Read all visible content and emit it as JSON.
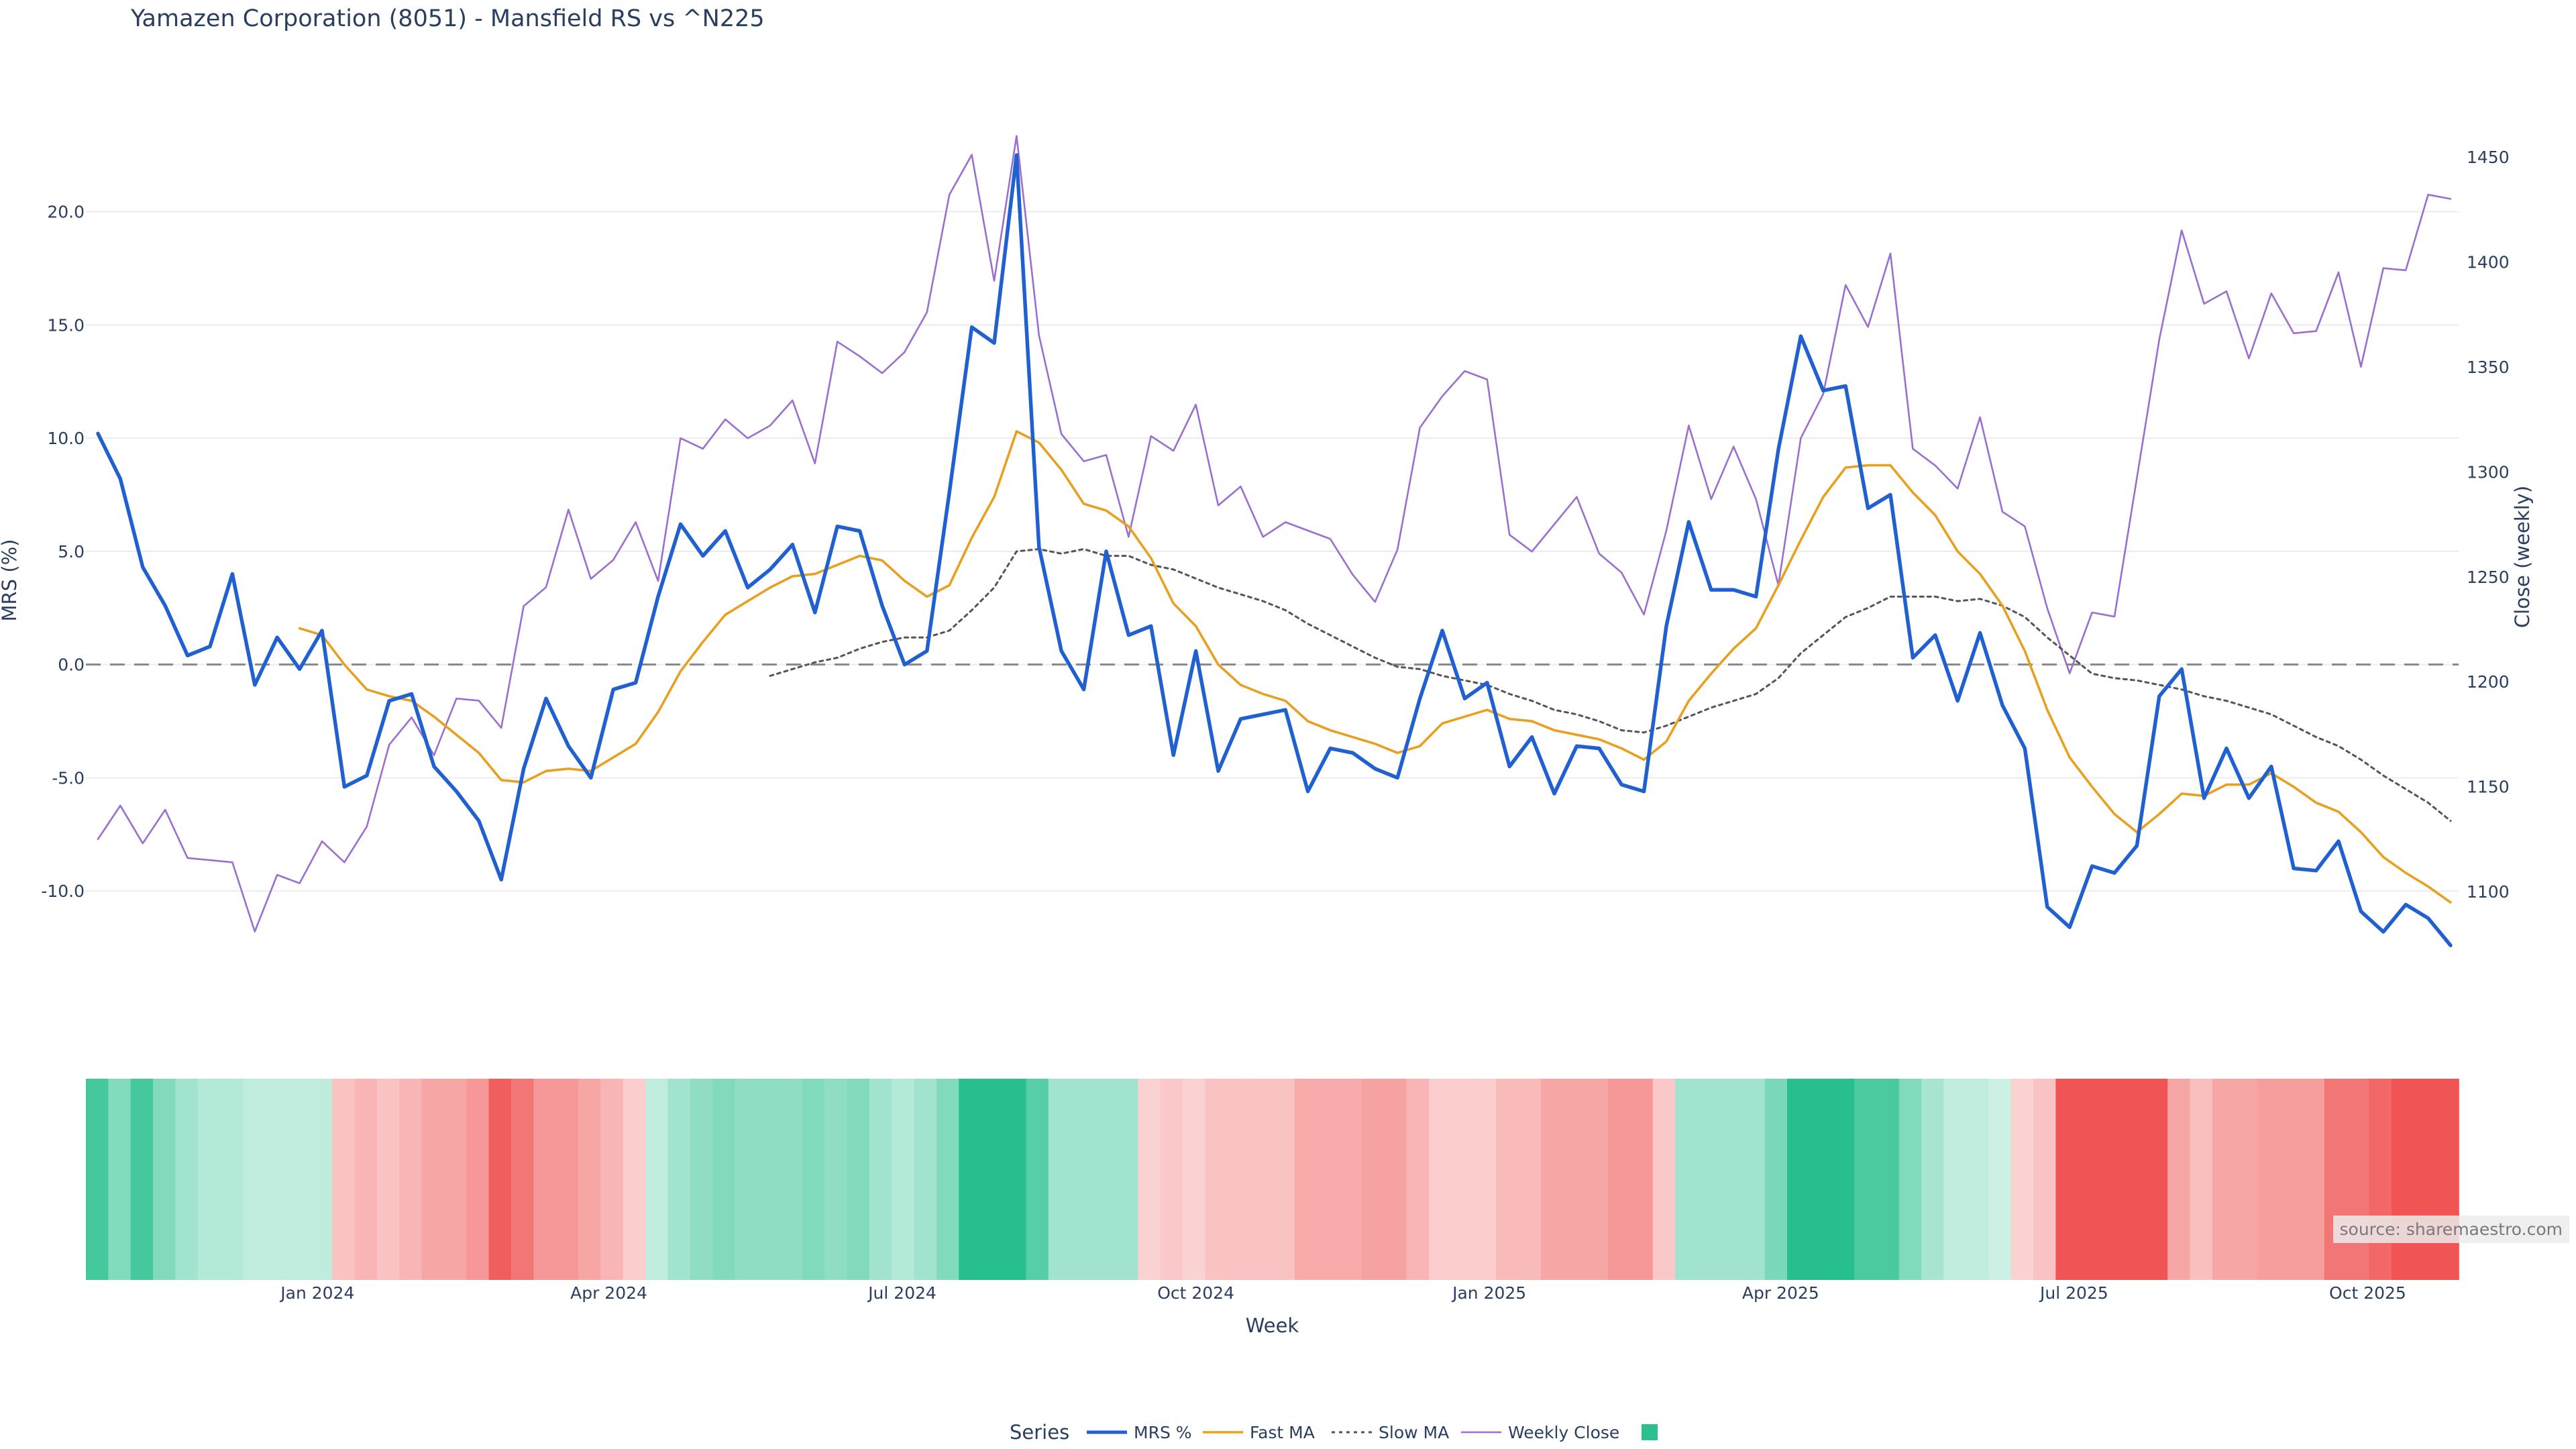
{
  "title": "Yamazen Corporation (8051) - Mansfield RS vs ^N225",
  "source": "source: sharemaestro.com",
  "colors": {
    "mrs": "#2060d0",
    "fast": "#e8a020",
    "slow": "#555555",
    "close": "#9b6fd0",
    "zero": "#888888",
    "grid": "#ececec",
    "legend_square": "#2dbf8f"
  },
  "chart_data": {
    "type": "line",
    "xlabel": "Week",
    "ylabel_left": "MRS (%)",
    "ylabel_right": "Close (weekly)",
    "ylim_left": [
      -14.2,
      25.2
    ],
    "ylim_right": [
      1055,
      1480
    ],
    "left_ticks": [
      "20.0",
      "15.0",
      "10.0",
      "5.0",
      "0.0",
      "-5.0",
      "-10.0"
    ],
    "left_tick_values": [
      20,
      15,
      10,
      5,
      0,
      -5,
      -10
    ],
    "right_ticks": [
      "1450",
      "1400",
      "1350",
      "1300",
      "1250",
      "1200",
      "1150",
      "1100"
    ],
    "right_tick_values": [
      1450,
      1400,
      1350,
      1300,
      1250,
      1200,
      1150,
      1100
    ],
    "x_ticks": [
      "Jan 2024",
      "Apr 2024",
      "Jul 2024",
      "Oct 2024",
      "Jan 2025",
      "Apr 2025",
      "Jul 2025",
      "Oct 2025"
    ],
    "x_tick_index": [
      9.8,
      22.8,
      35.9,
      49.0,
      62.1,
      75.1,
      88.2,
      101.3
    ],
    "zero_line": 0,
    "legend": {
      "title": "Series",
      "items": [
        "MRS %",
        "Fast MA",
        "Slow MA",
        "Weekly Close",
        ""
      ],
      "placement": "bottom-center"
    },
    "series": [
      {
        "name": "MRS %",
        "style": "solid",
        "values": [
          10.2,
          8.2,
          4.3,
          2.6,
          0.4,
          0.8,
          4.0,
          -0.9,
          1.2,
          -0.2,
          1.5,
          -5.4,
          -4.9,
          -1.6,
          -1.3,
          -4.5,
          -5.6,
          -6.9,
          -9.5,
          -4.6,
          -1.5,
          -3.6,
          -5.0,
          -1.1,
          -0.8,
          3.0,
          6.2,
          4.8,
          5.9,
          3.4,
          4.2,
          5.3,
          2.3,
          6.1,
          5.9,
          2.6,
          0.0,
          0.6,
          7.6,
          14.9,
          14.2,
          22.5,
          5.2,
          0.6,
          -1.1,
          5.0,
          1.3,
          1.7,
          -4.0,
          0.6,
          -4.7,
          -2.4,
          -2.2,
          -2.0,
          -5.6,
          -3.7,
          -3.9,
          -4.6,
          -5.0,
          -1.5,
          1.5,
          -1.5,
          -0.8,
          -4.5,
          -3.2,
          -5.7,
          -3.6,
          -3.7,
          -5.3,
          -5.6,
          1.7,
          6.3,
          3.3,
          3.3,
          3.0,
          9.5,
          14.5,
          12.1,
          12.3,
          6.9,
          7.5,
          0.3,
          1.3,
          -1.6,
          1.4,
          -1.8,
          -3.7,
          -10.7,
          -11.6,
          -8.9,
          -9.2,
          -8.0,
          -1.4,
          -0.2,
          -5.9,
          -3.7,
          -5.9,
          -4.5,
          -9.0,
          -9.1,
          -7.8,
          -10.9,
          -11.8,
          -10.6,
          -11.2,
          -12.4
        ]
      },
      {
        "name": "Fast MA",
        "style": "solid",
        "values": [
          null,
          null,
          null,
          null,
          null,
          null,
          null,
          null,
          null,
          1.6,
          1.3,
          0.0,
          -1.1,
          -1.4,
          -1.6,
          -2.3,
          -3.1,
          -3.9,
          -5.1,
          -5.2,
          -4.7,
          -4.6,
          -4.7,
          -4.1,
          -3.5,
          -2.1,
          -0.3,
          1.0,
          2.2,
          2.8,
          3.4,
          3.9,
          4.0,
          4.4,
          4.8,
          4.6,
          3.7,
          3.0,
          3.5,
          5.6,
          7.4,
          10.3,
          9.8,
          8.6,
          7.1,
          6.8,
          6.1,
          4.7,
          2.7,
          1.7,
          0.0,
          -0.9,
          -1.3,
          -1.6,
          -2.5,
          -2.9,
          -3.2,
          -3.5,
          -3.9,
          -3.6,
          -2.6,
          -2.3,
          -2.0,
          -2.4,
          -2.5,
          -2.9,
          -3.1,
          -3.3,
          -3.7,
          -4.2,
          -3.4,
          -1.6,
          -0.4,
          0.7,
          1.6,
          3.5,
          5.5,
          7.4,
          8.7,
          8.8,
          8.8,
          7.6,
          6.6,
          5.0,
          4.0,
          2.6,
          0.6,
          -2.0,
          -4.1,
          -5.4,
          -6.6,
          -7.4,
          -6.6,
          -5.7,
          -5.8,
          -5.3,
          -5.3,
          -4.8,
          -5.4,
          -6.1,
          -6.5,
          -7.4,
          -8.5,
          -9.2,
          -9.8,
          -10.5
        ]
      },
      {
        "name": "Slow MA",
        "style": "dotted",
        "values": [
          null,
          null,
          null,
          null,
          null,
          null,
          null,
          null,
          null,
          null,
          null,
          null,
          null,
          null,
          null,
          null,
          null,
          null,
          null,
          null,
          null,
          null,
          null,
          null,
          null,
          null,
          null,
          null,
          null,
          null,
          -0.5,
          -0.2,
          0.1,
          0.3,
          0.7,
          1.0,
          1.2,
          1.2,
          1.5,
          2.4,
          3.4,
          5.0,
          5.1,
          4.9,
          5.1,
          4.8,
          4.8,
          4.4,
          4.2,
          3.8,
          3.4,
          3.1,
          2.8,
          2.4,
          1.8,
          1.3,
          0.8,
          0.3,
          -0.1,
          -0.2,
          -0.5,
          -0.7,
          -0.9,
          -1.3,
          -1.6,
          -2.0,
          -2.2,
          -2.5,
          -2.9,
          -3.0,
          -2.7,
          -2.3,
          -1.9,
          -1.6,
          -1.3,
          -0.6,
          0.5,
          1.3,
          2.1,
          2.5,
          3.0,
          3.0,
          3.0,
          2.8,
          2.9,
          2.6,
          2.1,
          1.2,
          0.4,
          -0.4,
          -0.6,
          -0.7,
          -0.9,
          -1.1,
          -1.4,
          -1.6,
          -1.9,
          -2.2,
          -2.7,
          -3.2,
          -3.6,
          -4.2,
          -4.9,
          -5.5,
          -6.1,
          -6.9
        ]
      },
      {
        "name": "Weekly Close",
        "axis": "right",
        "style": "solid",
        "values": [
          1125,
          1141,
          1123,
          1139,
          1116,
          1115,
          1114,
          1081,
          1108,
          1104,
          1124,
          1114,
          1131,
          1170,
          1183,
          1165,
          1192,
          1191,
          1178,
          1236,
          1245,
          1282,
          1249,
          1258,
          1276,
          1248,
          1316,
          1311,
          1325,
          1316,
          1322,
          1334,
          1304,
          1362,
          1355,
          1347,
          1357,
          1376,
          1432,
          1451,
          1391,
          1460,
          1365,
          1318,
          1305,
          1308,
          1269,
          1317,
          1310,
          1332,
          1284,
          1293,
          1269,
          1276,
          1272,
          1268,
          1251,
          1238,
          1263,
          1321,
          1336,
          1348,
          1344,
          1270,
          1262,
          1275,
          1288,
          1261,
          1252,
          1232,
          1272,
          1322,
          1287,
          1312,
          1287,
          1246,
          1316,
          1337,
          1389,
          1369,
          1404,
          1311,
          1303,
          1292,
          1326,
          1281,
          1274,
          1235,
          1204,
          1233,
          1231,
          1297,
          1363,
          1415,
          1380,
          1386,
          1354,
          1385,
          1366,
          1367,
          1395,
          1350,
          1397,
          1396,
          1432,
          1430
        ]
      }
    ],
    "heatmap": {
      "values": [
        2.5,
        1.5,
        2.5,
        1.5,
        1,
        0.7,
        0.7,
        0.5,
        0.5,
        0.5,
        0.5,
        -0.7,
        -1,
        -0.7,
        -1,
        -1.3,
        -1.3,
        -1.6,
        -2.8,
        -2.3,
        -1.6,
        -1.6,
        -1.3,
        -1,
        -0.5,
        0.5,
        1,
        1.3,
        1.5,
        1.3,
        1.3,
        1.3,
        1.5,
        1.3,
        1.5,
        1,
        0.7,
        1,
        1.5,
        3,
        3,
        3,
        2.2,
        1,
        1,
        1,
        1,
        -0.4,
        -0.6,
        -0.4,
        -0.7,
        -0.7,
        -0.7,
        -0.7,
        -1.2,
        -1.2,
        -1.2,
        -1.4,
        -1.4,
        -1,
        -0.5,
        -0.5,
        -0.5,
        -0.9,
        -0.9,
        -1.3,
        -1.3,
        -1.3,
        -1.6,
        -1.6,
        -0.6,
        1,
        1,
        1,
        1,
        1.6,
        3,
        3,
        3,
        2.4,
        2.4,
        1.5,
        0.9,
        0.5,
        0.5,
        0.3,
        -0.4,
        -0.7,
        -3,
        -3,
        -3,
        -3,
        -3,
        -1.3,
        -0.8,
        -1.3,
        -1.3,
        -1.5,
        -1.5,
        -1.5,
        -2.3,
        -2.3,
        -2.6,
        -3.6,
        -3.6,
        -3.6
      ]
    }
  }
}
